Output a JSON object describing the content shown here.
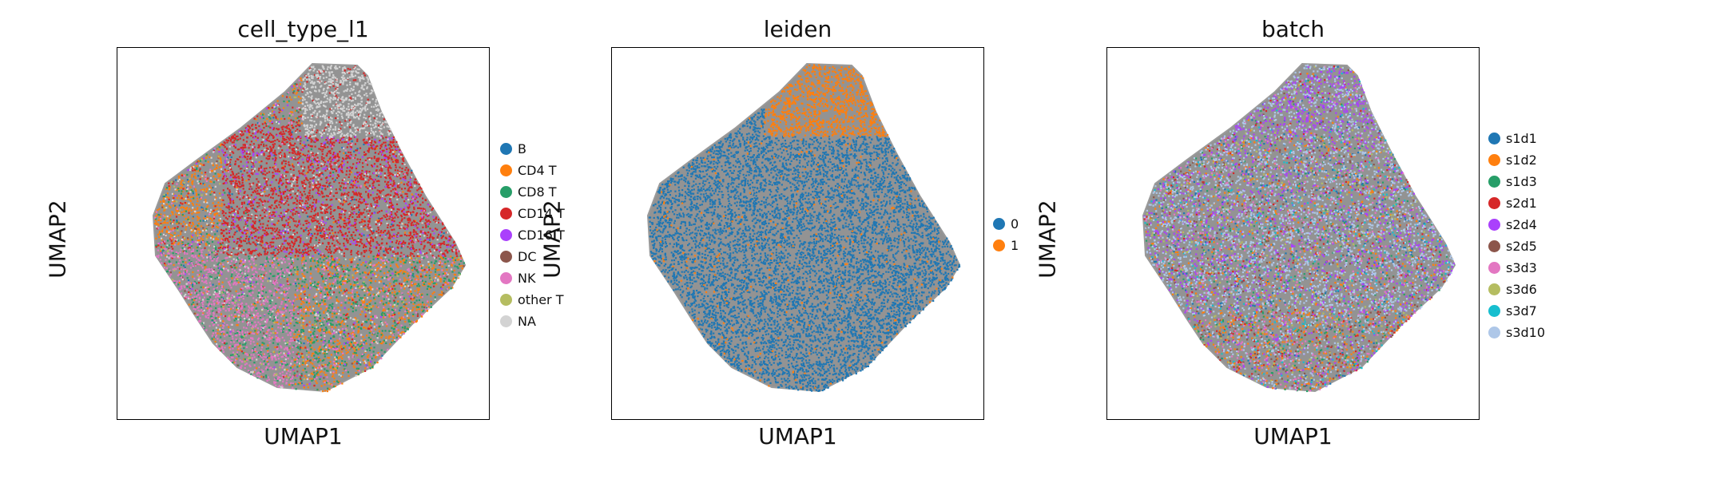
{
  "chart_data": [
    {
      "type": "scatter",
      "title": "cell_type_l1",
      "xlabel": "UMAP1",
      "ylabel": "UMAP2",
      "legend_position": "right",
      "background_color": "#808080",
      "series": [
        {
          "name": "B",
          "color": "#1f77b4"
        },
        {
          "name": "CD4 T",
          "color": "#ff7f0e"
        },
        {
          "name": "CD8 T",
          "color": "#279e68"
        },
        {
          "name": "CD14 T",
          "color": "#d62728"
        },
        {
          "name": "CD16 T",
          "color": "#aa40fc"
        },
        {
          "name": "DC",
          "color": "#8c564b"
        },
        {
          "name": "NK",
          "color": "#e377c2"
        },
        {
          "name": "other T",
          "color": "#b5bd61"
        },
        {
          "name": "NA",
          "color": "#d3d3d3"
        }
      ]
    },
    {
      "type": "scatter",
      "title": "leiden",
      "xlabel": "UMAP1",
      "ylabel": "UMAP2",
      "legend_position": "right",
      "background_color": "#808080",
      "series": [
        {
          "name": "0",
          "color": "#1f77b4"
        },
        {
          "name": "1",
          "color": "#ff7f0e"
        }
      ]
    },
    {
      "type": "scatter",
      "title": "batch",
      "xlabel": "UMAP1",
      "ylabel": "UMAP2",
      "legend_position": "right",
      "background_color": "#808080",
      "series": [
        {
          "name": "s1d1",
          "color": "#1f77b4"
        },
        {
          "name": "s1d2",
          "color": "#ff7f0e"
        },
        {
          "name": "s1d3",
          "color": "#279e68"
        },
        {
          "name": "s2d1",
          "color": "#d62728"
        },
        {
          "name": "s2d4",
          "color": "#aa40fc"
        },
        {
          "name": "s2d5",
          "color": "#8c564b"
        },
        {
          "name": "s3d3",
          "color": "#e377c2"
        },
        {
          "name": "s3d6",
          "color": "#b5bd61"
        },
        {
          "name": "s3d7",
          "color": "#17becf"
        },
        {
          "name": "s3d10",
          "color": "#aec7e8"
        }
      ]
    }
  ]
}
